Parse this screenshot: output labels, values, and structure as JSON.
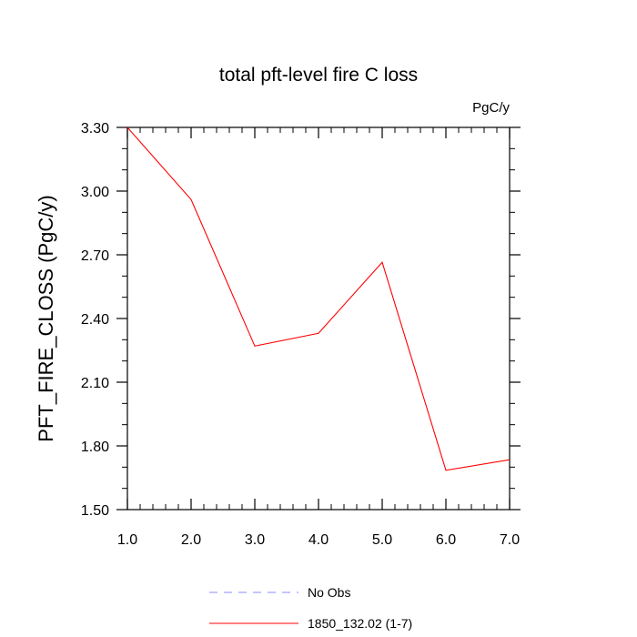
{
  "chart_data": {
    "type": "line",
    "title": "total pft-level fire C loss",
    "units_label": "PgC/y",
    "ylabel": "PFT_FIRE_CLOSS  (PgC/y)",
    "xlabel": "",
    "xlim": [
      1.0,
      7.0
    ],
    "ylim": [
      1.5,
      3.3
    ],
    "x_ticks": [
      "1.0",
      "2.0",
      "3.0",
      "4.0",
      "5.0",
      "6.0",
      "7.0"
    ],
    "y_ticks": [
      "1.50",
      "1.80",
      "2.10",
      "2.40",
      "2.70",
      "3.00",
      "3.30"
    ],
    "grid": false,
    "series": [
      {
        "name": "1850_132.02 (1-7)",
        "color": "#ff0000",
        "x": [
          1,
          2,
          3,
          4,
          5,
          6,
          7
        ],
        "y": [
          3.3,
          2.96,
          2.27,
          2.33,
          2.665,
          1.685,
          1.735
        ]
      }
    ],
    "legend": {
      "position": "bottom",
      "entries": [
        {
          "label": "No Obs",
          "color": "#8888ff",
          "style": "dashed"
        },
        {
          "label": "1850_132.02 (1-7)",
          "color": "#ff0000",
          "style": "solid"
        }
      ]
    }
  }
}
